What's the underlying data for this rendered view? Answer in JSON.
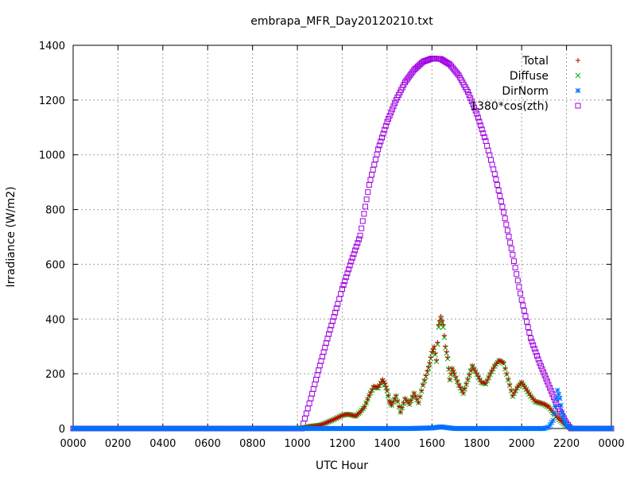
{
  "chart_data": {
    "type": "scatter",
    "title": "embrapa_MFR_Day20120210.txt",
    "xlabel": "UTC Hour",
    "ylabel": "Irradiance (W/m2)",
    "xlim": [
      0,
      2400
    ],
    "ylim": [
      0,
      1400
    ],
    "x_ticks": [
      "0000",
      "0200",
      "0400",
      "0600",
      "0800",
      "1000",
      "1200",
      "1400",
      "1600",
      "1800",
      "2000",
      "2200",
      "0000"
    ],
    "y_ticks": [
      "0",
      "200",
      "400",
      "600",
      "800",
      "1000",
      "1200",
      "1400"
    ],
    "grid": true,
    "legend_position": "top-right",
    "series": [
      {
        "name": "Total",
        "marker": "+",
        "color": "#c00000",
        "points": [
          [
            0,
            0
          ],
          [
            1000,
            0
          ],
          [
            1020,
            2
          ],
          [
            1040,
            5
          ],
          [
            1060,
            8
          ],
          [
            1080,
            10
          ],
          [
            1100,
            12
          ],
          [
            1120,
            18
          ],
          [
            1140,
            25
          ],
          [
            1160,
            32
          ],
          [
            1180,
            40
          ],
          [
            1200,
            48
          ],
          [
            1220,
            52
          ],
          [
            1240,
            50
          ],
          [
            1260,
            45
          ],
          [
            1280,
            60
          ],
          [
            1300,
            80
          ],
          [
            1320,
            120
          ],
          [
            1340,
            155
          ],
          [
            1360,
            150
          ],
          [
            1380,
            180
          ],
          [
            1390,
            165
          ],
          [
            1400,
            140
          ],
          [
            1410,
            100
          ],
          [
            1420,
            85
          ],
          [
            1440,
            120
          ],
          [
            1460,
            60
          ],
          [
            1480,
            110
          ],
          [
            1500,
            90
          ],
          [
            1520,
            130
          ],
          [
            1540,
            95
          ],
          [
            1560,
            160
          ],
          [
            1580,
            210
          ],
          [
            1590,
            240
          ],
          [
            1600,
            280
          ],
          [
            1610,
            300
          ],
          [
            1620,
            250
          ],
          [
            1630,
            380
          ],
          [
            1640,
            410
          ],
          [
            1650,
            380
          ],
          [
            1660,
            300
          ],
          [
            1670,
            260
          ],
          [
            1680,
            180
          ],
          [
            1690,
            220
          ],
          [
            1700,
            200
          ],
          [
            1720,
            160
          ],
          [
            1740,
            130
          ],
          [
            1760,
            180
          ],
          [
            1780,
            230
          ],
          [
            1800,
            200
          ],
          [
            1820,
            170
          ],
          [
            1840,
            165
          ],
          [
            1860,
            200
          ],
          [
            1880,
            230
          ],
          [
            1900,
            250
          ],
          [
            1920,
            240
          ],
          [
            1940,
            180
          ],
          [
            1960,
            120
          ],
          [
            1980,
            150
          ],
          [
            2000,
            170
          ],
          [
            2020,
            145
          ],
          [
            2040,
            120
          ],
          [
            2060,
            100
          ],
          [
            2080,
            95
          ],
          [
            2100,
            90
          ],
          [
            2120,
            80
          ],
          [
            2140,
            60
          ],
          [
            2160,
            40
          ],
          [
            2180,
            25
          ],
          [
            2200,
            10
          ],
          [
            2220,
            2
          ],
          [
            2240,
            0
          ],
          [
            2400,
            0
          ]
        ]
      },
      {
        "name": "Diffuse",
        "marker": "x",
        "color": "#00b000",
        "points": [
          [
            0,
            0
          ],
          [
            1000,
            0
          ],
          [
            1020,
            2
          ],
          [
            1040,
            5
          ],
          [
            1060,
            8
          ],
          [
            1080,
            10
          ],
          [
            1100,
            12
          ],
          [
            1120,
            18
          ],
          [
            1140,
            25
          ],
          [
            1160,
            32
          ],
          [
            1180,
            40
          ],
          [
            1200,
            48
          ],
          [
            1220,
            52
          ],
          [
            1240,
            50
          ],
          [
            1260,
            45
          ],
          [
            1280,
            60
          ],
          [
            1300,
            80
          ],
          [
            1320,
            120
          ],
          [
            1340,
            150
          ],
          [
            1360,
            148
          ],
          [
            1380,
            175
          ],
          [
            1390,
            160
          ],
          [
            1400,
            138
          ],
          [
            1410,
            100
          ],
          [
            1420,
            85
          ],
          [
            1440,
            118
          ],
          [
            1460,
            60
          ],
          [
            1480,
            108
          ],
          [
            1500,
            88
          ],
          [
            1520,
            128
          ],
          [
            1540,
            94
          ],
          [
            1560,
            158
          ],
          [
            1580,
            205
          ],
          [
            1590,
            235
          ],
          [
            1600,
            275
          ],
          [
            1610,
            295
          ],
          [
            1620,
            245
          ],
          [
            1630,
            370
          ],
          [
            1640,
            400
          ],
          [
            1650,
            370
          ],
          [
            1660,
            295
          ],
          [
            1670,
            255
          ],
          [
            1680,
            178
          ],
          [
            1690,
            218
          ],
          [
            1700,
            198
          ],
          [
            1720,
            158
          ],
          [
            1740,
            128
          ],
          [
            1760,
            178
          ],
          [
            1780,
            228
          ],
          [
            1800,
            198
          ],
          [
            1820,
            168
          ],
          [
            1840,
            163
          ],
          [
            1860,
            198
          ],
          [
            1880,
            228
          ],
          [
            1900,
            248
          ],
          [
            1920,
            238
          ],
          [
            1940,
            178
          ],
          [
            1960,
            118
          ],
          [
            1980,
            148
          ],
          [
            2000,
            168
          ],
          [
            2020,
            143
          ],
          [
            2040,
            118
          ],
          [
            2060,
            98
          ],
          [
            2080,
            93
          ],
          [
            2100,
            88
          ],
          [
            2120,
            78
          ],
          [
            2140,
            58
          ],
          [
            2160,
            38
          ],
          [
            2180,
            22
          ],
          [
            2200,
            8
          ],
          [
            2220,
            2
          ],
          [
            2240,
            0
          ],
          [
            2400,
            0
          ]
        ]
      },
      {
        "name": "DirNorm",
        "marker": "*",
        "color": "#0070ff",
        "points": [
          [
            0,
            0
          ],
          [
            1000,
            0
          ],
          [
            1100,
            0
          ],
          [
            1200,
            0
          ],
          [
            1300,
            0
          ],
          [
            1400,
            0
          ],
          [
            1500,
            0
          ],
          [
            1600,
            2
          ],
          [
            1620,
            4
          ],
          [
            1640,
            6
          ],
          [
            1660,
            4
          ],
          [
            1680,
            2
          ],
          [
            1700,
            0
          ],
          [
            1800,
            0
          ],
          [
            1900,
            0
          ],
          [
            2000,
            0
          ],
          [
            2100,
            0
          ],
          [
            2120,
            5
          ],
          [
            2140,
            30
          ],
          [
            2150,
            80
          ],
          [
            2160,
            140
          ],
          [
            2170,
            110
          ],
          [
            2180,
            60
          ],
          [
            2190,
            30
          ],
          [
            2200,
            10
          ],
          [
            2220,
            2
          ],
          [
            2240,
            0
          ],
          [
            2400,
            0
          ]
        ]
      },
      {
        "name": "1380*cos(zth)",
        "marker": "square",
        "color": "#a000e0",
        "points": [
          [
            0,
            0
          ],
          [
            1020,
            0
          ],
          [
            1040,
            55
          ],
          [
            1060,
            110
          ],
          [
            1100,
            230
          ],
          [
            1140,
            345
          ],
          [
            1180,
            455
          ],
          [
            1200,
            510
          ],
          [
            1240,
            610
          ],
          [
            1280,
            705
          ],
          [
            1320,
            890
          ],
          [
            1360,
            1020
          ],
          [
            1400,
            1120
          ],
          [
            1440,
            1200
          ],
          [
            1480,
            1265
          ],
          [
            1520,
            1310
          ],
          [
            1560,
            1340
          ],
          [
            1600,
            1352
          ],
          [
            1640,
            1350
          ],
          [
            1680,
            1330
          ],
          [
            1720,
            1290
          ],
          [
            1760,
            1230
          ],
          [
            1800,
            1150
          ],
          [
            1840,
            1050
          ],
          [
            1880,
            930
          ],
          [
            1920,
            790
          ],
          [
            1960,
            635
          ],
          [
            2000,
            470
          ],
          [
            2040,
            330
          ],
          [
            2080,
            240
          ],
          [
            2120,
            160
          ],
          [
            2160,
            80
          ],
          [
            2200,
            20
          ],
          [
            2220,
            0
          ],
          [
            2400,
            0
          ]
        ]
      }
    ]
  }
}
